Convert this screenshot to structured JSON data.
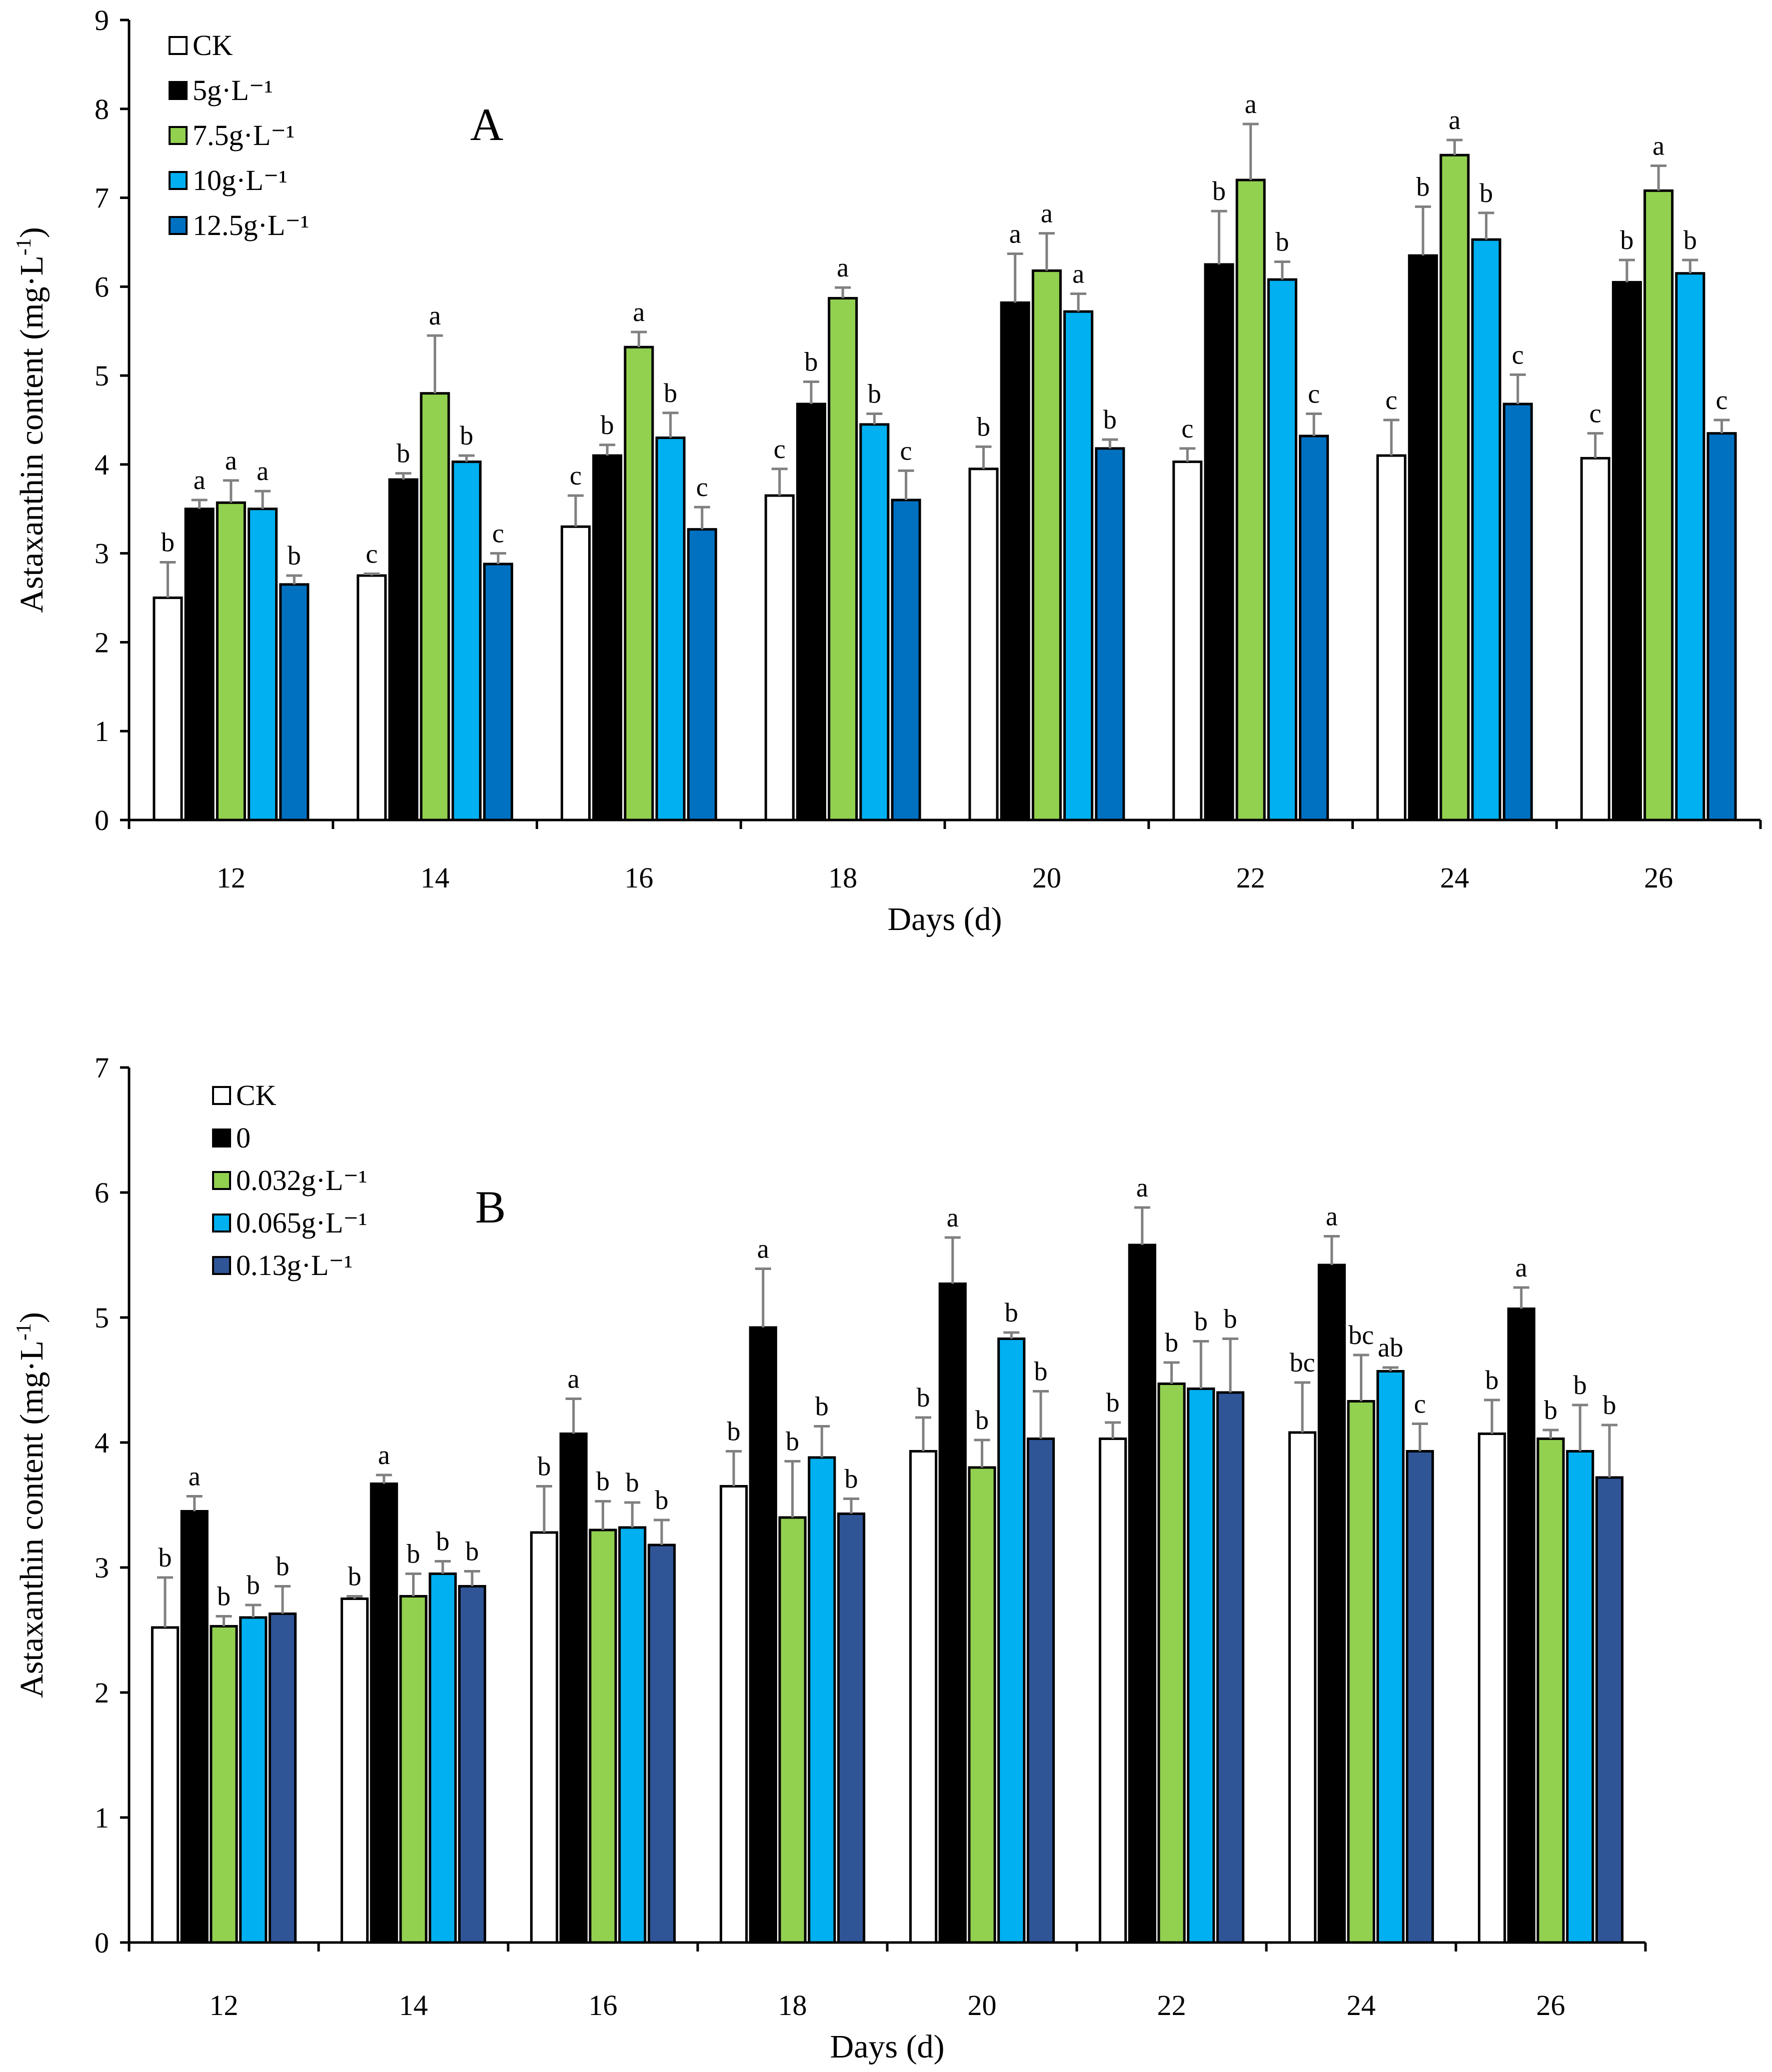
{
  "chart_data": [
    {
      "type": "bar",
      "panel_label": "A",
      "title": "",
      "xlabel": "Days (d)",
      "ylabel": "Astaxanthin content (mg·L",
      "ylabel_sup": "-1",
      "ylabel_close": ")",
      "ylim": [
        0,
        9
      ],
      "yticks": [
        "0",
        "1",
        "2",
        "3",
        "4",
        "5",
        "6",
        "7",
        "8",
        "9"
      ],
      "categories": [
        "12",
        "14",
        "16",
        "18",
        "20",
        "22",
        "24",
        "26"
      ],
      "legend_position": "top-left",
      "series": [
        {
          "name": "CK",
          "color": "#ffffff",
          "values": [
            2.5,
            2.75,
            3.3,
            3.65,
            3.95,
            4.03,
            4.1,
            4.07
          ],
          "errors": [
            0.4,
            0.02,
            0.35,
            0.3,
            0.25,
            0.15,
            0.4,
            0.28
          ],
          "letters": [
            "b",
            "c",
            "c",
            "c",
            "b",
            "c",
            "c",
            "c"
          ]
        },
        {
          "name": "5g·L⁻¹",
          "color": "#000000",
          "values": [
            3.5,
            3.83,
            4.1,
            4.68,
            5.82,
            6.25,
            6.35,
            6.05
          ],
          "errors": [
            0.1,
            0.07,
            0.12,
            0.25,
            0.55,
            0.6,
            0.55,
            0.25
          ],
          "letters": [
            "a",
            "b",
            "b",
            "b",
            "a",
            "b",
            "b",
            "b"
          ]
        },
        {
          "name": "7.5g·L⁻¹",
          "color": "#92d050",
          "values": [
            3.57,
            4.8,
            5.32,
            5.87,
            6.18,
            7.2,
            7.48,
            7.08
          ],
          "errors": [
            0.25,
            0.65,
            0.17,
            0.12,
            0.42,
            0.63,
            0.17,
            0.28
          ],
          "letters": [
            "a",
            "a",
            "a",
            "a",
            "a",
            "a",
            "a",
            "a"
          ]
        },
        {
          "name": "10g·L⁻¹",
          "color": "#00b0f0",
          "values": [
            3.5,
            4.03,
            4.3,
            4.45,
            5.72,
            6.08,
            6.53,
            6.15
          ],
          "errors": [
            0.2,
            0.07,
            0.28,
            0.12,
            0.2,
            0.2,
            0.3,
            0.15
          ],
          "letters": [
            "a",
            "b",
            "b",
            "b",
            "a",
            "b",
            "b",
            "b"
          ]
        },
        {
          "name": "12.5g·L⁻¹",
          "color": "#0070c0",
          "values": [
            2.65,
            2.88,
            3.27,
            3.6,
            4.18,
            4.32,
            4.68,
            4.35
          ],
          "errors": [
            0.1,
            0.12,
            0.25,
            0.33,
            0.1,
            0.25,
            0.33,
            0.15
          ],
          "letters": [
            "b",
            "c",
            "c",
            "c",
            "b",
            "c",
            "c",
            "c"
          ]
        }
      ],
      "grid": false
    },
    {
      "type": "bar",
      "panel_label": "B",
      "title": "",
      "xlabel": "Days (d)",
      "ylabel": "Astaxanthin content (mg·L",
      "ylabel_sup": "-1",
      "ylabel_close": ")",
      "ylim": [
        0,
        7
      ],
      "yticks": [
        "0",
        "1",
        "2",
        "3",
        "4",
        "5",
        "6",
        "7"
      ],
      "categories": [
        "12",
        "14",
        "16",
        "18",
        "20",
        "22",
        "24",
        "26"
      ],
      "legend_position": "top-left",
      "series": [
        {
          "name": "CK",
          "color": "#ffffff",
          "values": [
            2.52,
            2.75,
            3.28,
            3.65,
            3.93,
            4.03,
            4.08,
            4.07
          ],
          "errors": [
            0.4,
            0.02,
            0.37,
            0.28,
            0.27,
            0.13,
            0.4,
            0.27
          ],
          "letters": [
            "b",
            "b",
            "b",
            "b",
            "b",
            "b",
            "bc",
            "b"
          ]
        },
        {
          "name": "0",
          "color": "#000000",
          "values": [
            3.45,
            3.67,
            4.07,
            4.92,
            5.27,
            5.58,
            5.42,
            5.07
          ],
          "errors": [
            0.12,
            0.07,
            0.28,
            0.47,
            0.37,
            0.3,
            0.23,
            0.17
          ],
          "letters": [
            "a",
            "a",
            "a",
            "a",
            "a",
            "a",
            "a",
            "a"
          ]
        },
        {
          "name": "0.032g·L⁻¹",
          "color": "#92d050",
          "values": [
            2.53,
            2.77,
            3.3,
            3.4,
            3.8,
            4.47,
            4.33,
            4.03
          ],
          "errors": [
            0.08,
            0.18,
            0.23,
            0.45,
            0.22,
            0.17,
            0.37,
            0.07
          ],
          "letters": [
            "b",
            "b",
            "b",
            "b",
            "b",
            "b",
            "bc",
            "b"
          ]
        },
        {
          "name": "0.065g·L⁻¹",
          "color": "#00b0f0",
          "values": [
            2.6,
            2.95,
            3.32,
            3.88,
            4.83,
            4.43,
            4.57,
            3.93
          ],
          "errors": [
            0.1,
            0.1,
            0.2,
            0.25,
            0.05,
            0.38,
            0.03,
            0.37
          ],
          "letters": [
            "b",
            "b",
            "b",
            "b",
            "b",
            "b",
            "ab",
            "b"
          ]
        },
        {
          "name": "0.13g·L⁻¹",
          "color": "#2f5597",
          "values": [
            2.63,
            2.85,
            3.18,
            3.43,
            4.03,
            4.4,
            3.93,
            3.72
          ],
          "errors": [
            0.22,
            0.12,
            0.2,
            0.12,
            0.38,
            0.43,
            0.22,
            0.42
          ],
          "letters": [
            "b",
            "b",
            "b",
            "b",
            "b",
            "b",
            "c",
            "b"
          ]
        }
      ],
      "grid": false
    }
  ]
}
